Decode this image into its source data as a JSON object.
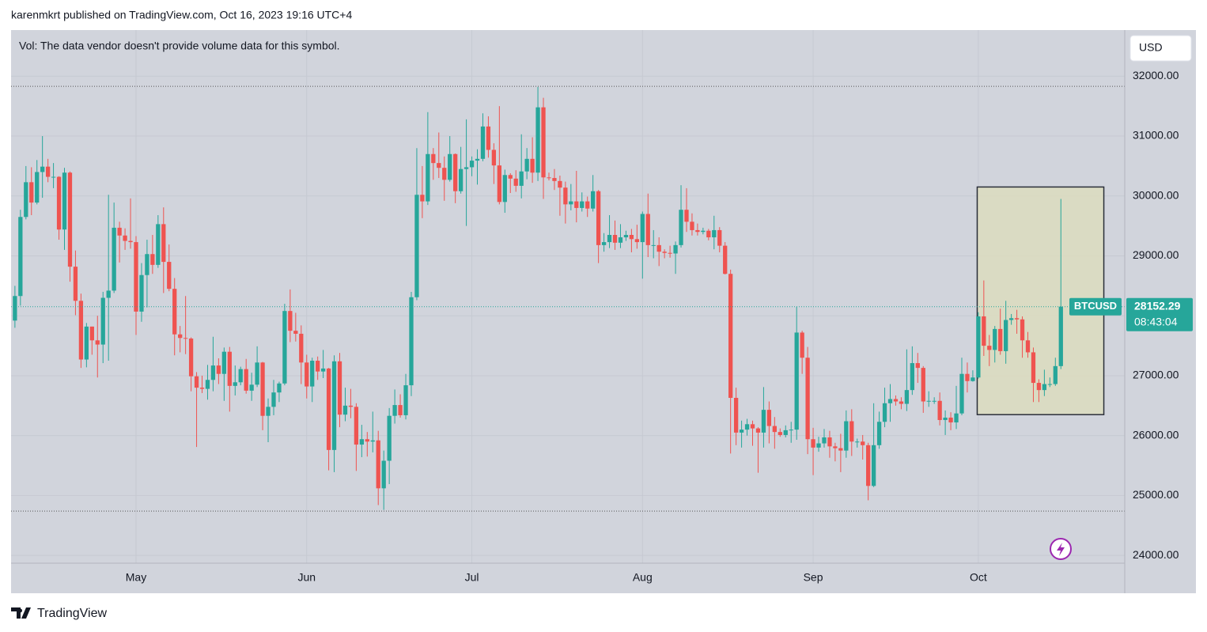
{
  "header": "karenmkrt published on TradingView.com, Oct 16, 2023 19:16 UTC+4",
  "footer": "TradingView",
  "chart_data": {
    "type": "candlestick",
    "note": "Vol: The data vendor doesn't provide volume data for this symbol.",
    "currency": "USD",
    "symbol": "BTCUSD",
    "countdown": "08:43:04",
    "colors": {
      "up": "#26a69a",
      "down": "#ef5350"
    },
    "grid": true,
    "ylim": [
      23870,
      32770
    ],
    "yticks": [
      {
        "value": 32000,
        "label": "32000.00"
      },
      {
        "value": 31000,
        "label": "31000.00"
      },
      {
        "value": 30000,
        "label": "30000.00"
      },
      {
        "value": 29000,
        "label": "29000.00"
      },
      {
        "value": 28000,
        "label": "28000.00"
      },
      {
        "value": 27000,
        "label": "27000.00"
      },
      {
        "value": 26000,
        "label": "26000.00"
      },
      {
        "value": 25000,
        "label": "25000.00"
      },
      {
        "value": 24000,
        "label": "24000.00"
      }
    ],
    "xlim": [
      -0.7,
      201.6
    ],
    "xticks": [
      {
        "value": 22,
        "label": "May"
      },
      {
        "value": 53,
        "label": "Jun"
      },
      {
        "value": 83,
        "label": "Jul"
      },
      {
        "value": 114,
        "label": "Aug"
      },
      {
        "value": 145,
        "label": "Sep"
      },
      {
        "value": 175,
        "label": "Oct"
      }
    ],
    "range_lines": [
      31830,
      24740
    ],
    "box": {
      "x": [
        174.8,
        197.8
      ],
      "y": [
        30150,
        26350
      ]
    },
    "candles": [
      [
        27920,
        28500,
        27800,
        28330
      ],
      [
        28330,
        29770,
        28170,
        29650
      ],
      [
        29650,
        30500,
        29610,
        30230
      ],
      [
        30230,
        30480,
        29680,
        29890
      ],
      [
        29890,
        30600,
        29860,
        30400
      ],
      [
        30400,
        31000,
        29970,
        30490
      ],
      [
        30490,
        30620,
        30230,
        30320
      ],
      [
        30320,
        30550,
        30130,
        30320
      ],
      [
        30320,
        30330,
        29270,
        29440
      ],
      [
        29440,
        30470,
        29100,
        30390
      ],
      [
        30390,
        30410,
        28570,
        28820
      ],
      [
        28820,
        29090,
        28010,
        28250
      ],
      [
        28250,
        28370,
        27130,
        27270
      ],
      [
        27270,
        27880,
        27140,
        27820
      ],
      [
        27820,
        27820,
        27350,
        27590
      ],
      [
        27590,
        28000,
        26970,
        27520
      ],
      [
        27520,
        28400,
        27210,
        28300
      ],
      [
        28300,
        30020,
        27250,
        28420
      ],
      [
        28420,
        29890,
        28380,
        29470
      ],
      [
        29470,
        29570,
        28890,
        29340
      ],
      [
        29340,
        29460,
        29100,
        29250
      ],
      [
        29250,
        29960,
        29120,
        29230
      ],
      [
        29230,
        29330,
        27680,
        28070
      ],
      [
        28070,
        28880,
        27900,
        28680
      ],
      [
        28680,
        29270,
        28140,
        29030
      ],
      [
        29030,
        29350,
        28700,
        28850
      ],
      [
        28850,
        29680,
        28800,
        29530
      ],
      [
        29530,
        29810,
        28380,
        28900
      ],
      [
        28900,
        29190,
        28410,
        28450
      ],
      [
        28450,
        28630,
        27340,
        27690
      ],
      [
        27690,
        27830,
        27390,
        27630
      ],
      [
        27630,
        28330,
        27360,
        27620
      ],
      [
        27620,
        27640,
        26740,
        26990
      ],
      [
        26990,
        27060,
        25810,
        26800
      ],
      [
        26800,
        27000,
        26710,
        26780
      ],
      [
        26780,
        27180,
        26600,
        26930
      ],
      [
        26930,
        27650,
        26740,
        27170
      ],
      [
        27170,
        27290,
        26860,
        27030
      ],
      [
        27030,
        27470,
        26580,
        27400
      ],
      [
        27400,
        27480,
        26400,
        26830
      ],
      [
        26830,
        27170,
        26670,
        26890
      ],
      [
        26890,
        27150,
        26840,
        27110
      ],
      [
        27110,
        27280,
        26700,
        26750
      ],
      [
        26750,
        27050,
        26580,
        26850
      ],
      [
        26850,
        27490,
        26810,
        27220
      ],
      [
        27220,
        27230,
        26090,
        26330
      ],
      [
        26330,
        26620,
        25890,
        26480
      ],
      [
        26480,
        26930,
        26340,
        26720
      ],
      [
        26720,
        26900,
        26560,
        26870
      ],
      [
        26870,
        28200,
        26840,
        28080
      ],
      [
        28080,
        28440,
        27560,
        27750
      ],
      [
        27750,
        28050,
        27570,
        27700
      ],
      [
        27700,
        27840,
        26860,
        27220
      ],
      [
        27220,
        27350,
        26620,
        26820
      ],
      [
        26820,
        27300,
        26560,
        27250
      ],
      [
        27250,
        27320,
        26930,
        27070
      ],
      [
        27070,
        27430,
        26960,
        27120
      ],
      [
        27120,
        27130,
        25420,
        25760
      ],
      [
        25760,
        27340,
        25390,
        27240
      ],
      [
        27240,
        27380,
        26140,
        26350
      ],
      [
        26350,
        26800,
        26240,
        26500
      ],
      [
        26500,
        26780,
        26290,
        26480
      ],
      [
        26480,
        26540,
        25410,
        25850
      ],
      [
        25850,
        26180,
        25640,
        25940
      ],
      [
        25940,
        26060,
        25650,
        25900
      ],
      [
        25900,
        26400,
        25720,
        25920
      ],
      [
        25920,
        26080,
        24840,
        25120
      ],
      [
        25120,
        25750,
        24760,
        25580
      ],
      [
        25580,
        26460,
        25190,
        26330
      ],
      [
        26330,
        26770,
        26200,
        26510
      ],
      [
        26510,
        26690,
        26300,
        26340
      ],
      [
        26340,
        27030,
        26270,
        26840
      ],
      [
        26840,
        28400,
        26660,
        28310
      ],
      [
        28310,
        30800,
        28260,
        30020
      ],
      [
        30020,
        30500,
        29630,
        29910
      ],
      [
        29910,
        31400,
        29850,
        30700
      ],
      [
        30700,
        30800,
        30270,
        30550
      ],
      [
        30550,
        31060,
        30300,
        30470
      ],
      [
        30470,
        30660,
        29920,
        30270
      ],
      [
        30270,
        31000,
        30240,
        30700
      ],
      [
        30700,
        30710,
        29880,
        30080
      ],
      [
        30080,
        30820,
        30040,
        30450
      ],
      [
        30450,
        31280,
        29500,
        30480
      ],
      [
        30480,
        30660,
        30330,
        30590
      ],
      [
        30590,
        30780,
        30190,
        30620
      ],
      [
        30620,
        31380,
        30580,
        31160
      ],
      [
        31160,
        31330,
        30640,
        30770
      ],
      [
        30770,
        30880,
        30200,
        30510
      ],
      [
        30510,
        31500,
        29860,
        29900
      ],
      [
        29900,
        30440,
        29720,
        30350
      ],
      [
        30350,
        30380,
        30050,
        30290
      ],
      [
        30290,
        30430,
        30070,
        30170
      ],
      [
        30170,
        31030,
        29960,
        30410
      ],
      [
        30410,
        30800,
        30280,
        30620
      ],
      [
        30620,
        30980,
        30220,
        30390
      ],
      [
        30390,
        31820,
        30250,
        31480
      ],
      [
        31480,
        31640,
        29950,
        30310
      ],
      [
        30310,
        30390,
        30260,
        30300
      ],
      [
        30300,
        30450,
        30100,
        30250
      ],
      [
        30250,
        30340,
        29670,
        30140
      ],
      [
        30140,
        30240,
        29540,
        29860
      ],
      [
        29860,
        30200,
        29760,
        29910
      ],
      [
        29910,
        30420,
        29560,
        29800
      ],
      [
        29800,
        30060,
        29740,
        29910
      ],
      [
        29910,
        29990,
        29650,
        29790
      ],
      [
        29790,
        30350,
        29740,
        30080
      ],
      [
        30080,
        30100,
        28880,
        29180
      ],
      [
        29180,
        29380,
        29070,
        29230
      ],
      [
        29230,
        29680,
        29130,
        29350
      ],
      [
        29350,
        29590,
        29100,
        29220
      ],
      [
        29220,
        29530,
        29130,
        29310
      ],
      [
        29310,
        29420,
        29250,
        29350
      ],
      [
        29350,
        29450,
        29060,
        29280
      ],
      [
        29280,
        29520,
        29120,
        29230
      ],
      [
        29230,
        29740,
        28620,
        29700
      ],
      [
        29700,
        30040,
        28980,
        29180
      ],
      [
        29180,
        29430,
        28960,
        29180
      ],
      [
        29180,
        29310,
        28830,
        29070
      ],
      [
        29070,
        29110,
        28960,
        29050
      ],
      [
        29050,
        29170,
        28970,
        29040
      ],
      [
        29040,
        29240,
        28700,
        29180
      ],
      [
        29180,
        30180,
        29140,
        29770
      ],
      [
        29770,
        30130,
        29400,
        29570
      ],
      [
        29570,
        29710,
        29340,
        29430
      ],
      [
        29430,
        29540,
        29340,
        29400
      ],
      [
        29400,
        29470,
        29360,
        29420
      ],
      [
        29420,
        29450,
        29260,
        29310
      ],
      [
        29310,
        29670,
        29110,
        29430
      ],
      [
        29430,
        29480,
        29060,
        29170
      ],
      [
        29170,
        29230,
        28690,
        28700
      ],
      [
        28700,
        28770,
        25700,
        26630
      ],
      [
        26630,
        26800,
        25840,
        26050
      ],
      [
        26050,
        26250,
        25800,
        26100
      ],
      [
        26100,
        26280,
        26000,
        26190
      ],
      [
        26190,
        26250,
        25830,
        26120
      ],
      [
        26120,
        26140,
        25380,
        26050
      ],
      [
        26050,
        26810,
        25800,
        26430
      ],
      [
        26430,
        26570,
        25870,
        26160
      ],
      [
        26160,
        26310,
        25780,
        26060
      ],
      [
        26060,
        26120,
        25980,
        26010
      ],
      [
        26010,
        26170,
        25970,
        26090
      ],
      [
        26090,
        26230,
        25880,
        26100
      ],
      [
        26100,
        28150,
        25930,
        27720
      ],
      [
        27720,
        27750,
        27030,
        27300
      ],
      [
        27300,
        27480,
        25690,
        25940
      ],
      [
        25940,
        26130,
        25340,
        25800
      ],
      [
        25800,
        25980,
        25730,
        25870
      ],
      [
        25870,
        26110,
        25800,
        25970
      ],
      [
        25970,
        26080,
        25630,
        25820
      ],
      [
        25820,
        25880,
        25570,
        25790
      ],
      [
        25790,
        26030,
        25390,
        25750
      ],
      [
        25750,
        26420,
        25630,
        26240
      ],
      [
        26240,
        26440,
        25660,
        25900
      ],
      [
        25900,
        25950,
        25800,
        25900
      ],
      [
        25900,
        26010,
        25600,
        25840
      ],
      [
        25840,
        25880,
        24920,
        25160
      ],
      [
        25160,
        26540,
        25140,
        25840
      ],
      [
        25840,
        26400,
        25780,
        26230
      ],
      [
        26230,
        26800,
        26140,
        26540
      ],
      [
        26540,
        26860,
        26230,
        26610
      ],
      [
        26610,
        26670,
        26500,
        26570
      ],
      [
        26570,
        26640,
        26440,
        26530
      ],
      [
        26530,
        27440,
        26410,
        26760
      ],
      [
        26760,
        27490,
        26680,
        27210
      ],
      [
        27210,
        27380,
        26880,
        27130
      ],
      [
        27130,
        27160,
        26380,
        26570
      ],
      [
        26570,
        26740,
        26480,
        26580
      ],
      [
        26580,
        26640,
        26530,
        26580
      ],
      [
        26580,
        26720,
        26170,
        26260
      ],
      [
        26260,
        26420,
        26010,
        26300
      ],
      [
        26300,
        26390,
        26090,
        26220
      ],
      [
        26220,
        26830,
        26110,
        26370
      ],
      [
        26370,
        27300,
        26340,
        27030
      ],
      [
        27030,
        27220,
        26720,
        26910
      ],
      [
        26910,
        27090,
        26900,
        26970
      ],
      [
        26970,
        28060,
        26950,
        27990
      ],
      [
        27990,
        28590,
        27330,
        27500
      ],
      [
        27500,
        27680,
        27160,
        27430
      ],
      [
        27430,
        27830,
        27220,
        27780
      ],
      [
        27780,
        28120,
        27350,
        27410
      ],
      [
        27410,
        28250,
        27200,
        27930
      ],
      [
        27930,
        28030,
        27850,
        27960
      ],
      [
        27960,
        28100,
        27700,
        27940
      ],
      [
        27940,
        27990,
        27300,
        27590
      ],
      [
        27590,
        27730,
        27300,
        27390
      ],
      [
        27390,
        27470,
        26560,
        26880
      ],
      [
        26880,
        26940,
        26560,
        26760
      ],
      [
        26760,
        27100,
        26660,
        26860
      ],
      [
        26860,
        26970,
        26810,
        26860
      ],
      [
        26860,
        27300,
        26830,
        27160
      ],
      [
        27160,
        29950,
        27110,
        28152.29
      ]
    ]
  }
}
